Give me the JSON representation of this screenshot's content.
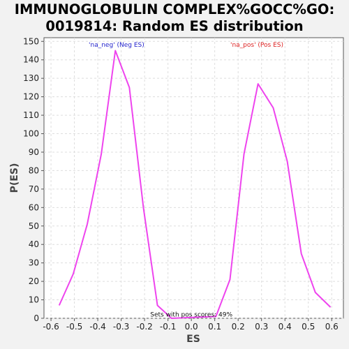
{
  "chart_data": {
    "type": "line",
    "title_lines": [
      "IMMUNOGLOBULIN COMPLEX%GOCC%GO:",
      "0019814: Random ES distribution"
    ],
    "xlabel": "ES",
    "ylabel": "P(ES)",
    "xlim": [
      -0.63,
      0.65
    ],
    "ylim": [
      0,
      152
    ],
    "xticks": [
      -0.6,
      -0.5,
      -0.4,
      -0.3,
      -0.2,
      -0.1,
      0.0,
      0.1,
      0.2,
      0.3,
      0.4,
      0.5,
      0.6
    ],
    "xtick_labels": [
      "-0.6",
      "-0.5",
      "-0.4",
      "-0.3",
      "-0.2",
      "-0.1",
      "0.0",
      "0.1",
      "0.2",
      "0.3",
      "0.4",
      "0.5",
      "0.6"
    ],
    "yticks": [
      0,
      10,
      20,
      30,
      40,
      50,
      60,
      70,
      80,
      90,
      100,
      110,
      120,
      130,
      140,
      150
    ],
    "ytick_labels": [
      "0",
      "10",
      "20",
      "30",
      "40",
      "50",
      "60",
      "70",
      "80",
      "90",
      "100",
      "110",
      "120",
      "130",
      "140",
      "150"
    ],
    "grid": true,
    "series": [
      {
        "color": "#ee44ee",
        "x": [
          -0.565,
          -0.505,
          -0.445,
          -0.385,
          -0.325,
          -0.265,
          -0.205,
          -0.145,
          -0.085,
          0.105,
          0.165,
          0.225,
          0.285,
          0.35,
          0.41,
          0.47,
          0.53,
          0.595
        ],
        "y": [
          7,
          24,
          51,
          89,
          145,
          125,
          60,
          7,
          0,
          1,
          21,
          89,
          127,
          114,
          85,
          35,
          14,
          6
        ]
      }
    ],
    "annotations": [
      {
        "text": "'na_neg' (Neg ES)",
        "x": -0.32,
        "y": 147,
        "color": "#2222cc"
      },
      {
        "text": "'na_pos' (Pos ES)",
        "x": 0.28,
        "y": 147,
        "color": "#dd2222"
      },
      {
        "text": "Sets with pos scores: 49%",
        "x": 0.0,
        "y": 1,
        "color": "#111111"
      }
    ]
  }
}
